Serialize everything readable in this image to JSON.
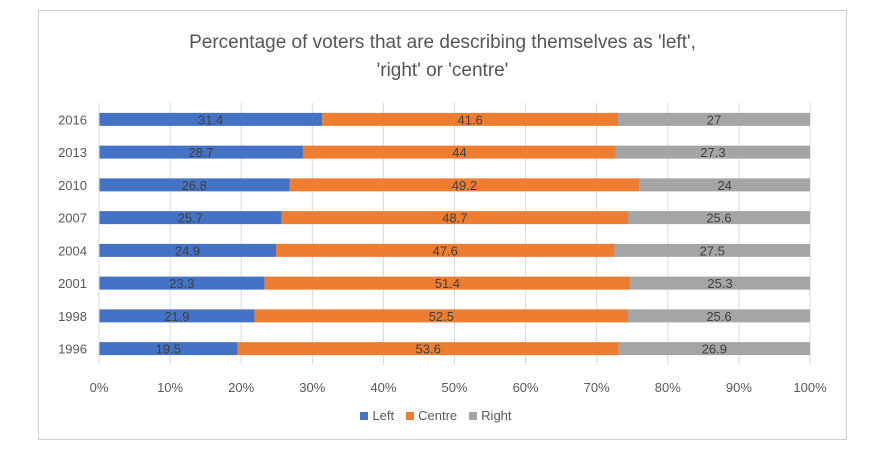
{
  "chart_data": {
    "type": "bar",
    "orientation": "horizontal",
    "stacking": "percent",
    "title_lines": [
      "Percentage of voters that are describing themselves as 'left',",
      "'right' or 'centre'"
    ],
    "categories": [
      "2016",
      "2013",
      "2010",
      "2007",
      "2004",
      "2001",
      "1998",
      "1996"
    ],
    "series": [
      {
        "name": "Left",
        "color": "#4472C4",
        "values": [
          31.4,
          28.7,
          26.8,
          25.7,
          24.9,
          23.3,
          21.9,
          19.5
        ]
      },
      {
        "name": "Centre",
        "color": "#ED7D31",
        "values": [
          41.6,
          44,
          49.2,
          48.7,
          47.6,
          51.4,
          52.5,
          53.6
        ]
      },
      {
        "name": "Right",
        "color": "#A5A5A5",
        "values": [
          27,
          27.3,
          24,
          25.6,
          27.5,
          25.3,
          25.6,
          26.9
        ]
      }
    ],
    "x_ticks": [
      "0%",
      "10%",
      "20%",
      "30%",
      "40%",
      "50%",
      "60%",
      "70%",
      "80%",
      "90%",
      "100%"
    ],
    "xlim": [
      0,
      100
    ],
    "grid": true,
    "data_labels": true,
    "legend_position": "bottom"
  }
}
